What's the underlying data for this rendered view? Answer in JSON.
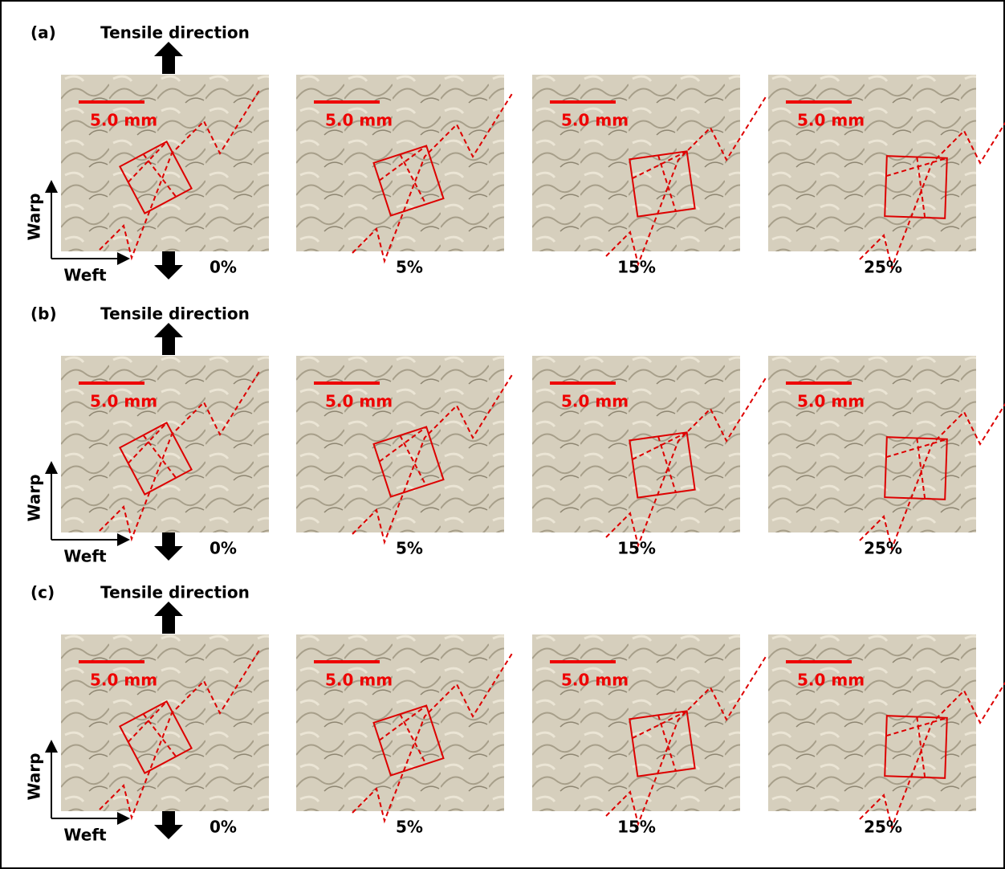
{
  "panels": [
    {
      "label": "(a)",
      "direction": "Tensile direction",
      "warp": "Warp",
      "weft": "Weft",
      "frames": [
        {
          "strain": "0%",
          "scale": "5.0 mm"
        },
        {
          "strain": "5%",
          "scale": "5.0 mm"
        },
        {
          "strain": "15%",
          "scale": "5.0 mm"
        },
        {
          "strain": "25%",
          "scale": "5.0 mm"
        }
      ]
    },
    {
      "label": "(b)",
      "direction": "Tensile direction",
      "warp": "Warp",
      "weft": "Weft",
      "frames": [
        {
          "strain": "0%",
          "scale": "5.0 mm"
        },
        {
          "strain": "5%",
          "scale": "5.0 mm"
        },
        {
          "strain": "15%",
          "scale": "5.0 mm"
        },
        {
          "strain": "25%",
          "scale": "5.0 mm"
        }
      ]
    },
    {
      "label": "(c)",
      "direction": "Tensile direction",
      "warp": "Warp",
      "weft": "Weft",
      "frames": [
        {
          "strain": "0%",
          "scale": "5.0 mm"
        },
        {
          "strain": "5%",
          "scale": "5.0 mm"
        },
        {
          "strain": "15%",
          "scale": "5.0 mm"
        },
        {
          "strain": "25%",
          "scale": "5.0 mm"
        }
      ]
    }
  ]
}
